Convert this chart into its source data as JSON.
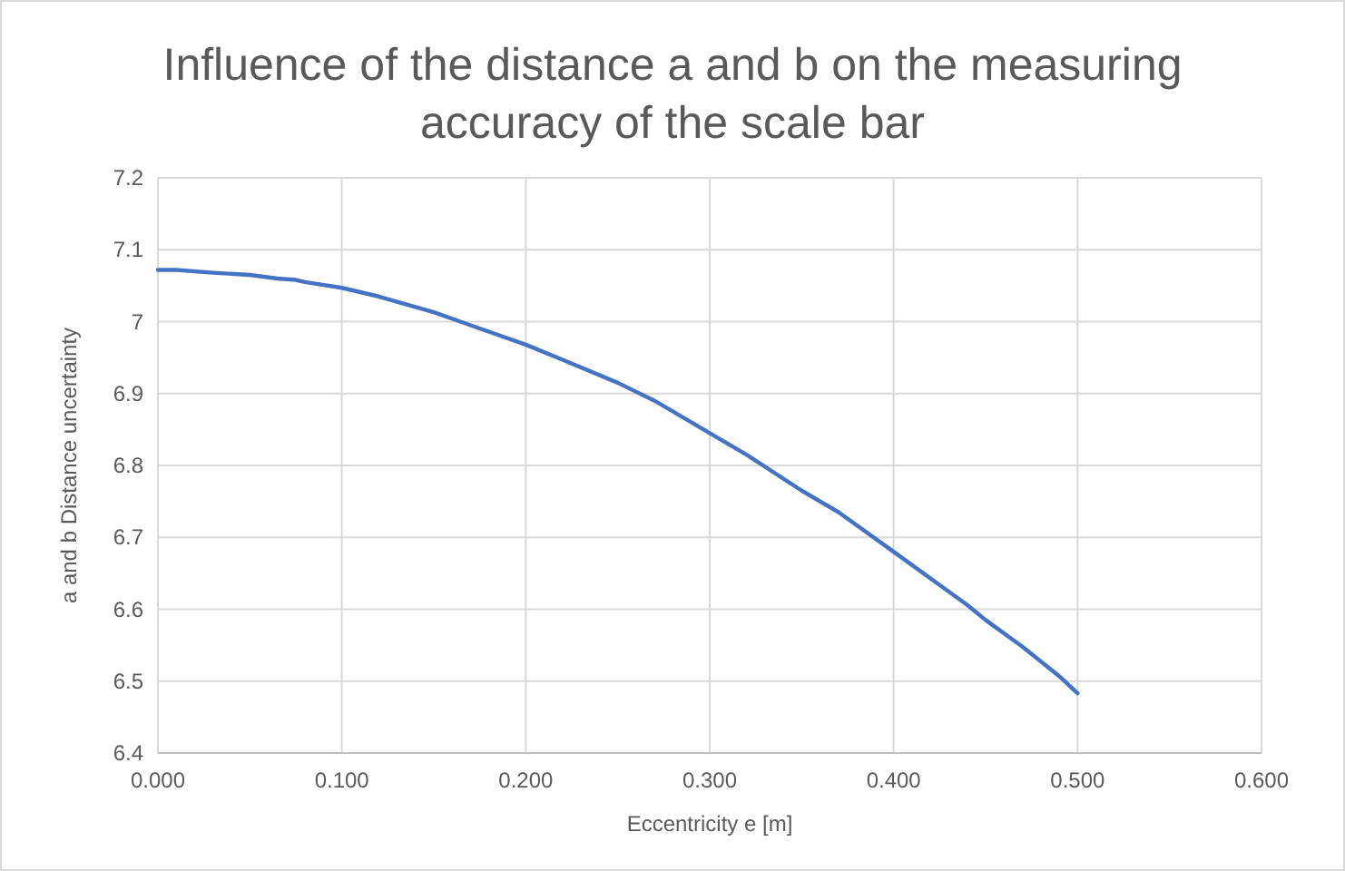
{
  "chart_data": {
    "type": "line",
    "title": "Influence of the distance a and b on the measuring accuracy of the scale bar",
    "xlabel": "Eccentricity e [m]",
    "ylabel": "a and b Distance uncertainty",
    "series": [
      {
        "color": "#4472c4",
        "x": [
          0,
          0.01,
          0.03,
          0.05,
          0.065,
          0.075,
          0.08,
          0.1,
          0.12,
          0.15,
          0.17,
          0.2,
          0.22,
          0.25,
          0.27,
          0.3,
          0.32,
          0.35,
          0.37,
          0.4,
          0.42,
          0.44,
          0.45,
          0.47,
          0.49,
          0.5
        ],
        "values": [
          7.072,
          7.072,
          7.068,
          7.065,
          7.06,
          7.058,
          7.055,
          7.047,
          7.035,
          7.013,
          6.995,
          6.968,
          6.947,
          6.915,
          6.89,
          6.845,
          6.815,
          6.765,
          6.735,
          6.68,
          6.643,
          6.606,
          6.585,
          6.548,
          6.507,
          6.483
        ]
      }
    ],
    "xlim": [
      0,
      0.6
    ],
    "xticks": [
      {
        "value": 0,
        "label": "0.000"
      },
      {
        "value": 0.1,
        "label": "0.100"
      },
      {
        "value": 0.2,
        "label": "0.200"
      },
      {
        "value": 0.3,
        "label": "0.300"
      },
      {
        "value": 0.4,
        "label": "0.400"
      },
      {
        "value": 0.5,
        "label": "0.500"
      },
      {
        "value": 0.6,
        "label": "0.600"
      }
    ],
    "ylim": [
      6.4,
      7.2
    ],
    "yticks": [
      6.4,
      6.5,
      6.6,
      6.7,
      6.8,
      6.9,
      7,
      7.1,
      7.2
    ],
    "grid": true,
    "marker": "none",
    "line_style": "solid"
  }
}
